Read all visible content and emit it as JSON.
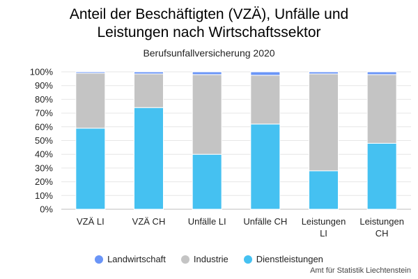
{
  "chart_data": {
    "type": "bar",
    "stacked": true,
    "title": "Anteil der Beschäftigten (VZÄ), Unfälle und\nLeistungen nach Wirtschaftssektor",
    "subtitle": "Berufsunfallversicherung 2020",
    "credit": "Amt für Statistik Liechtenstein",
    "categories": [
      "VZÄ LI",
      "VZÄ CH",
      "Unfälle LI",
      "Unfälle CH",
      "Leistungen\nLI",
      "Leistungen\nCH"
    ],
    "y_ticks": [
      "0%",
      "10%",
      "20%",
      "30%",
      "40%",
      "50%",
      "60%",
      "70%",
      "80%",
      "90%",
      "100%"
    ],
    "ylim": [
      0,
      100
    ],
    "grid": true,
    "legend_position": "bottom",
    "series": [
      {
        "name": "Dienstleistungen",
        "color": "#45c1f1",
        "values": [
          59,
          74,
          40,
          62,
          28,
          48
        ]
      },
      {
        "name": "Industrie",
        "color": "#c4c4c4",
        "values": [
          40,
          24.5,
          58,
          35.5,
          70.5,
          50
        ]
      },
      {
        "name": "Landwirtschaft",
        "color": "#6a95f7",
        "values": [
          1,
          1.5,
          2,
          2.5,
          1.5,
          2
        ]
      }
    ],
    "legend_order": [
      "Landwirtschaft",
      "Industrie",
      "Dienstleistungen"
    ]
  }
}
